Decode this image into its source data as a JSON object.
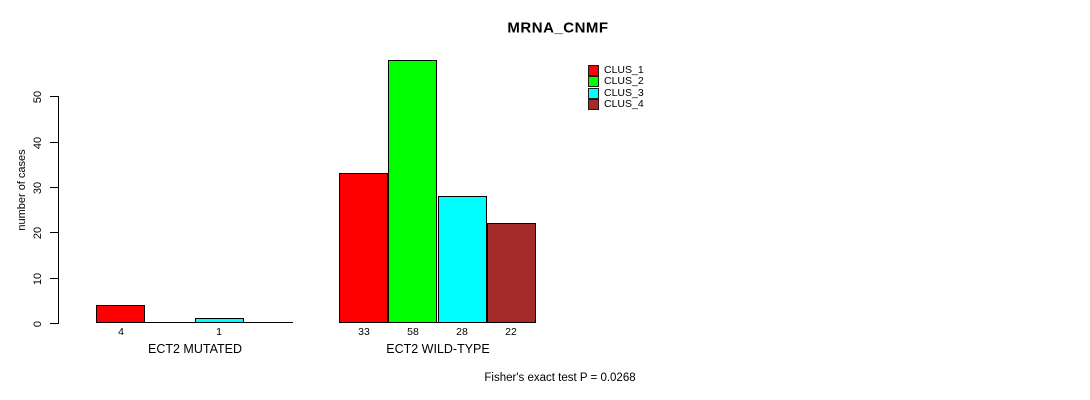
{
  "chart_data": {
    "type": "bar",
    "title": "MRNA_CNMF",
    "ylabel": "number of cases",
    "xlabel": "",
    "yticks": [
      0,
      10,
      20,
      30,
      40,
      50
    ],
    "ylim": [
      0,
      58
    ],
    "grid": false,
    "legend_position": "top-right",
    "series": [
      {
        "name": "CLUS_1",
        "color": "#FF0000"
      },
      {
        "name": "CLUS_2",
        "color": "#00FF00"
      },
      {
        "name": "CLUS_3",
        "color": "#00FFFF"
      },
      {
        "name": "CLUS_4",
        "color": "#A52A2A"
      }
    ],
    "groups": [
      {
        "label": "ECT2 MUTATED",
        "values": [
          4,
          0,
          1,
          0
        ]
      },
      {
        "label": "ECT2 WILD-TYPE",
        "values": [
          33,
          58,
          28,
          22
        ]
      }
    ],
    "zero_value_bars_drawn": false,
    "annotation": "Fisher's exact test P = 0.0268",
    "colors": {
      "axis": "#000000",
      "background": "#FFFFFF"
    }
  }
}
